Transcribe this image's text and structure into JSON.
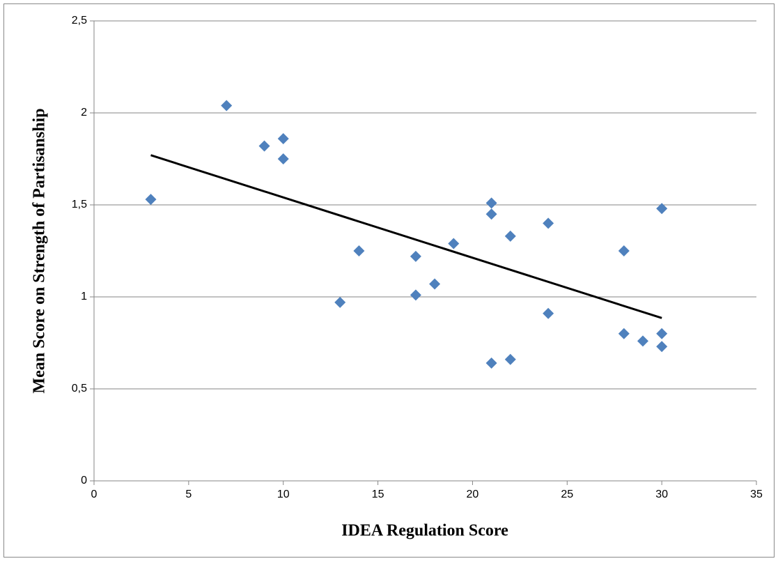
{
  "chart_data": {
    "type": "scatter",
    "x_label": "IDEA Regulation Score",
    "y_label": "Mean Score on Strength of Partisanship",
    "x": [
      3,
      7,
      9,
      10,
      10,
      13,
      14,
      17,
      17,
      18,
      19,
      21,
      21,
      21,
      22,
      22,
      24,
      24,
      28,
      28,
      29,
      30,
      30,
      30
    ],
    "values": [
      1.53,
      2.04,
      1.82,
      1.86,
      1.75,
      0.97,
      1.25,
      1.22,
      1.01,
      1.07,
      1.29,
      1.51,
      1.45,
      0.64,
      1.33,
      0.66,
      1.4,
      0.91,
      1.25,
      0.8,
      0.76,
      1.48,
      0.8,
      0.73
    ],
    "color": "#4f81bd",
    "trendline": {
      "x": [
        3,
        30
      ],
      "y": [
        1.77,
        0.885
      ],
      "color": "#000000"
    },
    "xlim": [
      0,
      35
    ],
    "xticks": [
      0,
      5,
      10,
      15,
      20,
      25,
      30,
      35
    ],
    "ylim": [
      0,
      2.5
    ],
    "yticks": [
      0,
      {
        "value": 0.5,
        "label": "0,5"
      },
      1,
      {
        "value": 1.5,
        "label": "1,5"
      },
      2,
      {
        "value": 2.5,
        "label": "2,5"
      }
    ],
    "grid": true
  }
}
